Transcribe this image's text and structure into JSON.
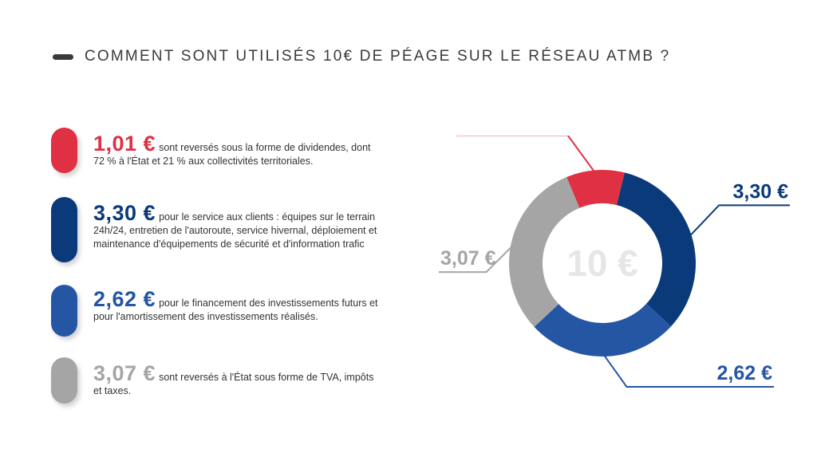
{
  "title": "COMMENT SONT UTILISÉS 10€ DE PÉAGE SUR LE RÉSEAU ATMB ?",
  "legend": [
    {
      "amount": "1,01 €",
      "text": "sont reversés sous la forme de dividendes, dont 72 % à l'État et 21 % aux collectivités territoriales.",
      "color": "#e03043"
    },
    {
      "amount": "3,30 €",
      "text": "pour le service aux clients : équipes sur le terrain 24h/24, entretien de l'autoroute, service hivernal, déploiement et maintenance d'équipements de sécurité et d'information trafic",
      "color": "#0a3a7a"
    },
    {
      "amount": "2,62 €",
      "text": "pour le financement des investissements futurs et pour l'amortissement des investissements réalisés.",
      "color": "#2456a4"
    },
    {
      "amount": "3,07 €",
      "text": "sont reversés à l'État sous forme de TVA, impôts et taxes.",
      "color": "#a5a5a6"
    }
  ],
  "chart_data": {
    "type": "pie",
    "style": "donut",
    "center_label": "10 €",
    "categories": [
      "1,01 €",
      "3,30 €",
      "2,62 €",
      "3,07 €"
    ],
    "values": [
      1.01,
      3.3,
      2.62,
      3.07
    ],
    "colors": [
      "#e03043",
      "#0a3a7a",
      "#2456a4",
      "#a5a5a6"
    ],
    "total": 10
  }
}
